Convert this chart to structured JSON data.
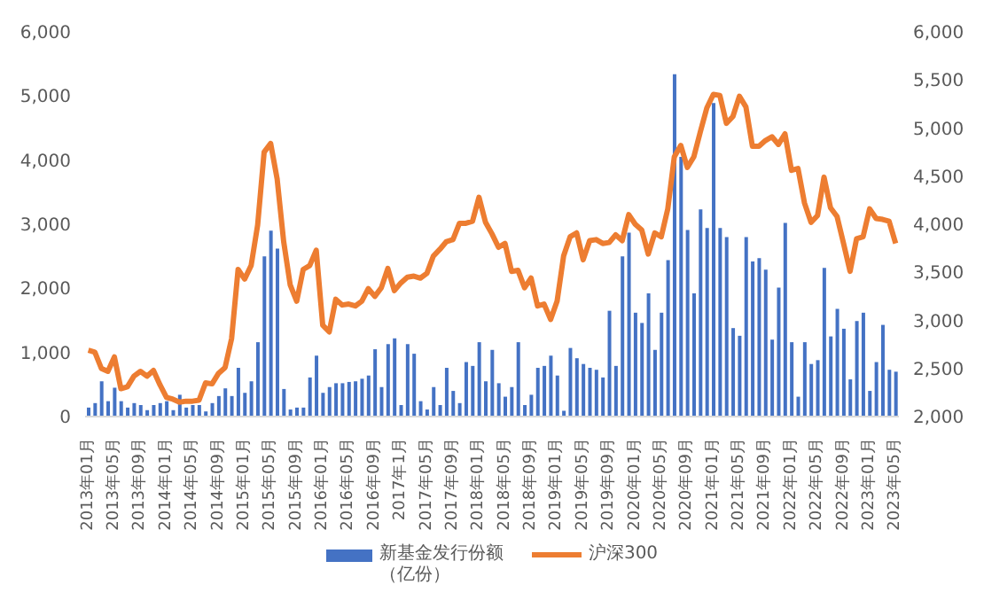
{
  "chart_data": {
    "type": "bar",
    "categories": [
      "2013年01月",
      null,
      null,
      null,
      "2013年05月",
      null,
      null,
      null,
      "2013年09月",
      null,
      null,
      null,
      "2014年01月",
      null,
      null,
      null,
      "2014年05月",
      null,
      null,
      null,
      "2014年09月",
      null,
      null,
      null,
      "2015年01月",
      null,
      null,
      null,
      "2015年05月",
      null,
      null,
      null,
      "2015年09月",
      null,
      null,
      null,
      "2016年01月",
      null,
      null,
      null,
      "2016年05月",
      null,
      null,
      null,
      "2016年09月",
      null,
      null,
      null,
      "2017年1月",
      null,
      null,
      null,
      "2017年05月",
      null,
      null,
      null,
      "2017年09月",
      null,
      null,
      null,
      "2018年01月",
      null,
      null,
      null,
      "2018年05月",
      null,
      null,
      null,
      "2018年09月",
      null,
      null,
      null,
      "2019年01月",
      null,
      null,
      null,
      "2019年05月",
      null,
      null,
      null,
      "2019年09月",
      null,
      null,
      null,
      "2020年01月",
      null,
      null,
      null,
      "2020年05月",
      null,
      null,
      null,
      "2020年09月",
      null,
      null,
      null,
      "2021年01月",
      null,
      null,
      null,
      "2021年05月",
      null,
      null,
      null,
      "2021年09月",
      null,
      null,
      null,
      "2022年01月",
      null,
      null,
      null,
      "2022年05月",
      null,
      null,
      null,
      "2022年09月",
      null,
      null,
      null,
      "2023年01月",
      null,
      null,
      null,
      "2023年05月"
    ],
    "series": [
      {
        "name": "新基金发行份额（亿份）",
        "color": "#4472c4",
        "values": [
          140,
          210,
          550,
          240,
          450,
          240,
          140,
          210,
          180,
          100,
          180,
          210,
          240,
          100,
          340,
          140,
          180,
          180,
          80,
          210,
          320,
          440,
          320,
          760,
          370,
          550,
          1160,
          2500,
          2900,
          2620,
          430,
          110,
          140,
          140,
          610,
          950,
          370,
          460,
          520,
          520,
          540,
          550,
          590,
          640,
          1050,
          460,
          1130,
          1220,
          180,
          1130,
          980,
          240,
          110,
          460,
          180,
          760,
          400,
          210,
          850,
          790,
          1160,
          550,
          1040,
          520,
          310,
          460,
          1160,
          180,
          340,
          760,
          790,
          950,
          640,
          90,
          1070,
          910,
          820,
          760,
          730,
          610,
          1650,
          790,
          2500,
          2870,
          1620,
          1460,
          1920,
          1040,
          1620,
          2440,
          5340,
          4050,
          2910,
          1920,
          3230,
          2940,
          4890,
          2940,
          2800,
          1380,
          1260,
          2800,
          2420,
          2470,
          2290,
          1200,
          2010,
          3020,
          1160,
          310,
          1160,
          820,
          880,
          2320,
          1250,
          1680,
          1370,
          580,
          1490,
          1620,
          400,
          850,
          1430,
          730,
          700
        ]
      },
      {
        "name": "沪深300",
        "type": "line",
        "axis": "y2",
        "color": "#ed7d31",
        "values": [
          2690,
          2670,
          2500,
          2470,
          2620,
          2290,
          2310,
          2420,
          2470,
          2420,
          2480,
          2330,
          2200,
          2180,
          2150,
          2160,
          2160,
          2170,
          2350,
          2340,
          2450,
          2510,
          2810,
          3530,
          3430,
          3570,
          3990,
          4750,
          4840,
          4470,
          3820,
          3370,
          3200,
          3530,
          3570,
          3730,
          2950,
          2880,
          3220,
          3160,
          3170,
          3150,
          3200,
          3330,
          3250,
          3340,
          3540,
          3310,
          3390,
          3450,
          3460,
          3440,
          3490,
          3670,
          3740,
          3820,
          3840,
          4010,
          4010,
          4030,
          4280,
          4020,
          3900,
          3760,
          3800,
          3510,
          3520,
          3340,
          3440,
          3150,
          3170,
          3010,
          3200,
          3670,
          3870,
          3910,
          3630,
          3830,
          3840,
          3800,
          3810,
          3890,
          3830,
          4100,
          4000,
          3940,
          3690,
          3910,
          3870,
          4160,
          4700,
          4820,
          4590,
          4700,
          4960,
          5210,
          5350,
          5340,
          5050,
          5120,
          5330,
          5220,
          4810,
          4810,
          4870,
          4910,
          4830,
          4940,
          4560,
          4580,
          4220,
          4020,
          4090,
          4490,
          4170,
          4080,
          3800,
          3510,
          3850,
          3870,
          4160,
          4060,
          4050,
          4030,
          3800
        ]
      }
    ],
    "ylim": [
      0,
      6000
    ],
    "yticks": [
      0,
      {
        "value": 1000,
        "label": "1,000"
      },
      {
        "value": 2000,
        "label": "2,000"
      },
      {
        "value": 3000,
        "label": "3,000"
      },
      {
        "value": 4000,
        "label": "4,000"
      },
      {
        "value": 5000,
        "label": "5,000"
      },
      {
        "value": 6000,
        "label": "6,000"
      }
    ],
    "y2lim": [
      2000,
      6000
    ],
    "y2ticks": [
      {
        "value": 2000,
        "label": "2,000"
      },
      {
        "value": 2500,
        "label": "2,500"
      },
      {
        "value": 3000,
        "label": "3,000"
      },
      {
        "value": 3500,
        "label": "3,500"
      },
      {
        "value": 4000,
        "label": "4,000"
      },
      {
        "value": 4500,
        "label": "4,500"
      },
      {
        "value": 5000,
        "label": "5,000"
      },
      {
        "value": 5500,
        "label": "5,500"
      },
      {
        "value": 6000,
        "label": "6,000"
      }
    ],
    "legend": "bottom"
  }
}
